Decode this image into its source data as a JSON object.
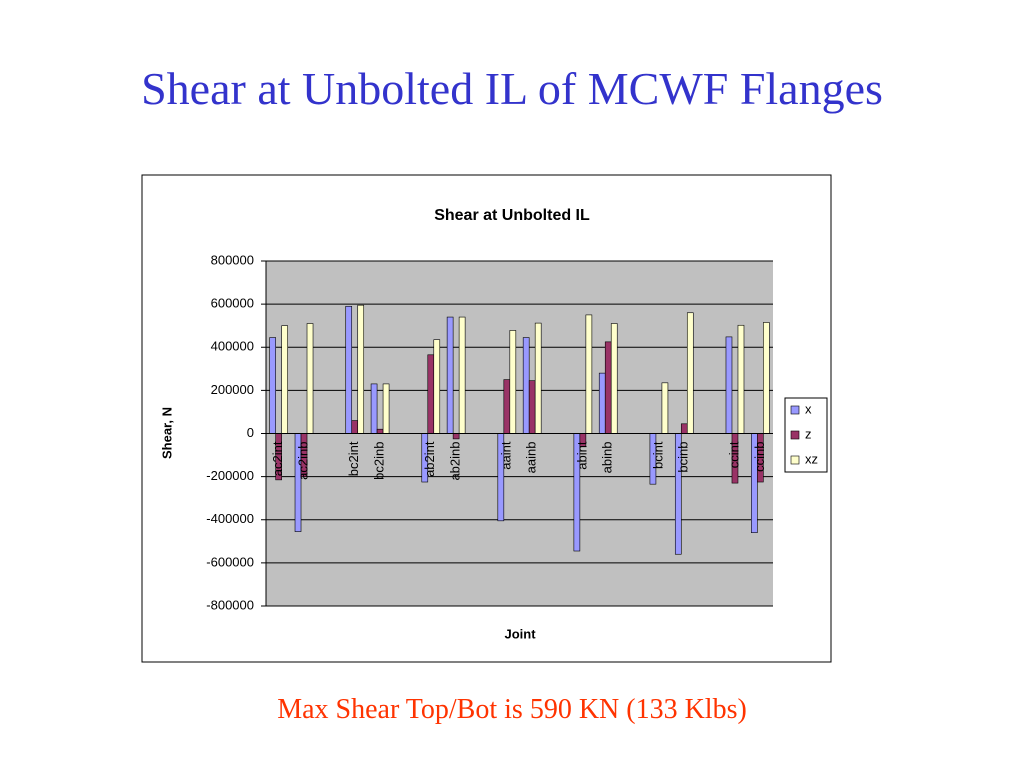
{
  "header": {
    "title": "Shear at Unbolted IL of MCWF Flanges"
  },
  "chart_data": {
    "type": "bar",
    "title": "Shear at Unbolted IL",
    "xlabel": "Joint",
    "ylabel": "Shear, N",
    "categories": [
      "ac2int",
      "ac2inb",
      null,
      "bc2int",
      "bc2inb",
      null,
      "ab2int",
      "ab2inb",
      null,
      "aaint",
      "aainb",
      null,
      "abint",
      "abinb",
      null,
      "bcint",
      "bcinb",
      null,
      "ccint",
      "ccinb"
    ],
    "series": [
      {
        "name": "x",
        "color": "#9999ff",
        "values": [
          445000,
          -455000,
          null,
          590000,
          230000,
          null,
          -225000,
          540000,
          null,
          -405000,
          445000,
          null,
          -545000,
          280000,
          null,
          -235000,
          -560000,
          null,
          448000,
          -460000
        ]
      },
      {
        "name": "z",
        "color": "#993366",
        "values": [
          -215000,
          -200000,
          null,
          60000,
          20000,
          null,
          365000,
          -25000,
          null,
          250000,
          245000,
          null,
          -60000,
          425000,
          null,
          0,
          45000,
          null,
          -230000,
          -225000
        ]
      },
      {
        "name": "xz",
        "color": "#ffffcc",
        "values": [
          500000,
          510000,
          null,
          595000,
          230000,
          null,
          435000,
          540000,
          null,
          478000,
          512000,
          null,
          550000,
          510000,
          null,
          235000,
          560000,
          null,
          502000,
          515000
        ]
      }
    ],
    "ylim": [
      -800000,
      800000
    ],
    "yticks": [
      -800000,
      -600000,
      -400000,
      -200000,
      0,
      200000,
      400000,
      600000,
      800000
    ],
    "grid": true,
    "legend": "right",
    "plot_background": "#c0c0c0"
  },
  "footer": {
    "note": "Max Shear Top/Bot is 590 KN (133 Klbs)"
  }
}
